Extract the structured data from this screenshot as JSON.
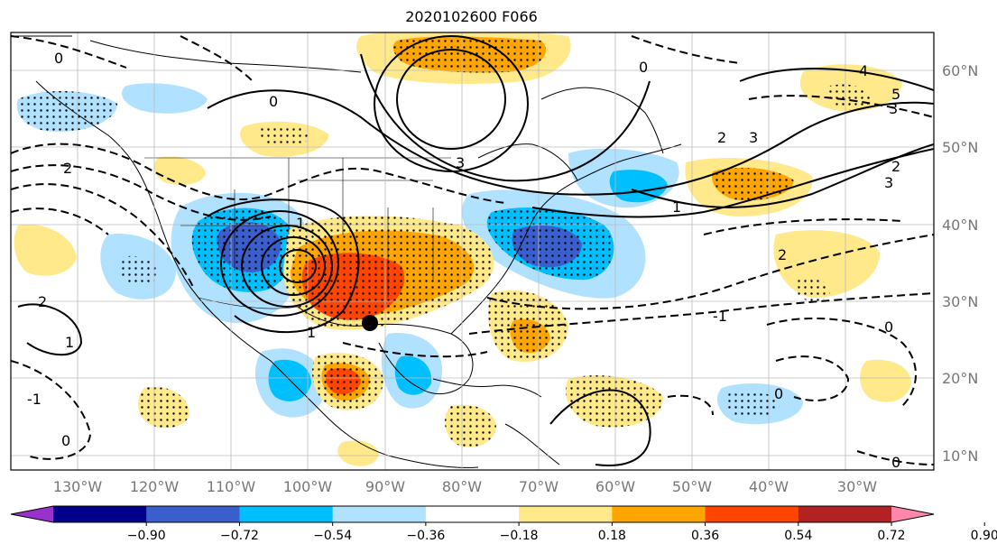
{
  "title": "2020102600 F066",
  "map": {
    "lon_labels": [
      "130°W",
      "120°W",
      "110°W",
      "100°W",
      "90°W",
      "80°W",
      "70°W",
      "60°W",
      "50°W",
      "40°W",
      "30°W"
    ],
    "lat_labels": [
      "60°N",
      "50°N",
      "40°N",
      "30°N",
      "20°N",
      "10°N"
    ],
    "contour_labels": [
      "0",
      "1",
      "2",
      "3",
      "0",
      "2",
      "3",
      "4",
      "5",
      "3",
      "2",
      "3",
      "1",
      "0",
      "1",
      "2",
      "-1",
      "0",
      "0",
      "2",
      "1",
      "0",
      "-1",
      "0"
    ],
    "marker": "black-dot"
  },
  "colorbar": {
    "ticks": [
      "−0.90",
      "−0.72",
      "−0.54",
      "−0.36",
      "−0.18",
      "0.18",
      "0.36",
      "0.54",
      "0.72",
      "0.90"
    ],
    "colors": [
      "#9932cc",
      "#00008b",
      "#3a5fcd",
      "#00bfff",
      "#b0e2ff",
      "#ffffff",
      "#ffe98a",
      "#ffa500",
      "#ff4500",
      "#b22222",
      "#ff88aa"
    ]
  }
}
